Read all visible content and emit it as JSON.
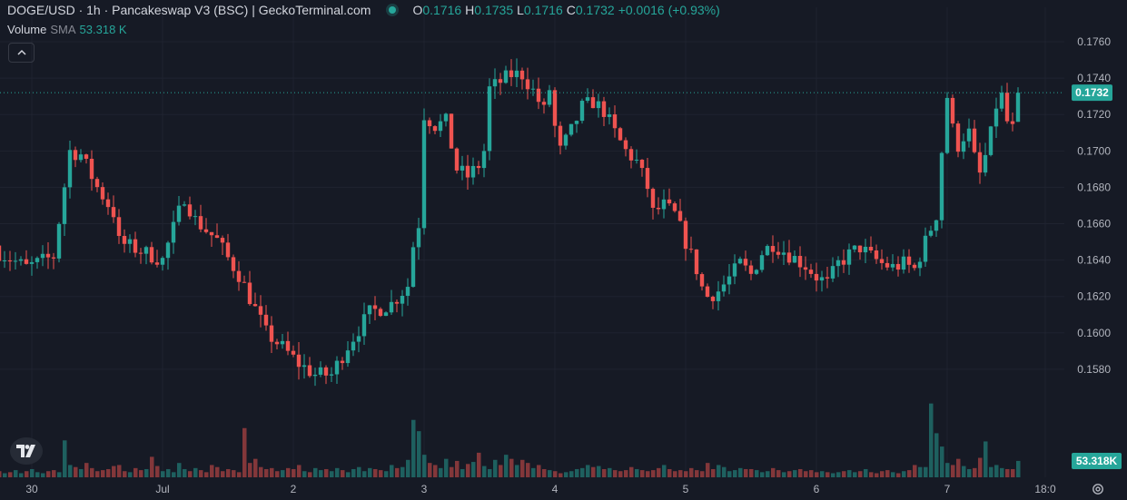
{
  "header": {
    "title": "DOGE/USD · 1h · Pancakeswap V3 (BSC) | GeckoTerminal.com",
    "ohlc": {
      "o_label": "O",
      "o": "0.1716",
      "h_label": "H",
      "h": "0.1735",
      "l_label": "L",
      "l": "0.1716",
      "c_label": "C",
      "c": "0.1732",
      "change": "+0.0016 (+0.93%)"
    }
  },
  "volume_legend": {
    "label": "Volume",
    "sma": "SMA",
    "value": "53.318 K"
  },
  "icons": {
    "collapse": "chevron-up-icon",
    "logo": "tradingview-logo-icon",
    "settings": "gear-icon"
  },
  "colors": {
    "up": "#26a69a",
    "down": "#ef5350",
    "background": "#161a25",
    "grid": "#1f2330",
    "text": "#b2b5be"
  },
  "chart_data": {
    "type": "candlestick",
    "interval": "1h",
    "y_axis": {
      "ticks": [
        "0.1760",
        "0.1740",
        "0.1720",
        "0.1700",
        "0.1680",
        "0.1660",
        "0.1640",
        "0.1620",
        "0.1600",
        "0.1580"
      ],
      "min": 0.1555,
      "max": 0.1769
    },
    "x_axis": {
      "ticks": [
        {
          "label": "30",
          "hour": 6
        },
        {
          "label": "Jul",
          "hour": 30
        },
        {
          "label": "2",
          "hour": 54
        },
        {
          "label": "3",
          "hour": 78
        },
        {
          "label": "4",
          "hour": 102
        },
        {
          "label": "5",
          "hour": 126
        },
        {
          "label": "6",
          "hour": 150
        },
        {
          "label": "7",
          "hour": 174
        },
        {
          "label": "18:0",
          "hour": 192
        }
      ]
    },
    "last_price": {
      "value": 0.1732,
      "label": "0.1732"
    },
    "volume_label": "53.318K",
    "vol_max": 100,
    "close_path": [
      [
        0,
        0.1644
      ],
      [
        5,
        0.1636
      ],
      [
        10,
        0.1642
      ],
      [
        13,
        0.17
      ],
      [
        15,
        0.1698
      ],
      [
        18,
        0.168
      ],
      [
        21,
        0.1666
      ],
      [
        22,
        0.165
      ],
      [
        26,
        0.1645
      ],
      [
        30,
        0.164
      ],
      [
        34,
        0.1675
      ],
      [
        36,
        0.1662
      ],
      [
        40,
        0.1651
      ],
      [
        42,
        0.1641
      ],
      [
        44,
        0.1632
      ],
      [
        47,
        0.1613
      ],
      [
        49,
        0.16
      ],
      [
        52,
        0.1592
      ],
      [
        55,
        0.1583
      ],
      [
        58,
        0.1577
      ],
      [
        61,
        0.1577
      ],
      [
        64,
        0.1593
      ],
      [
        68,
        0.1611
      ],
      [
        72,
        0.1616
      ],
      [
        75,
        0.1626
      ],
      [
        76,
        0.1648
      ],
      [
        77,
        0.166
      ],
      [
        78,
        0.172
      ],
      [
        80,
        0.1714
      ],
      [
        82,
        0.1716
      ],
      [
        84,
        0.169
      ],
      [
        86,
        0.1686
      ],
      [
        88,
        0.1692
      ],
      [
        89,
        0.17
      ],
      [
        90,
        0.1734
      ],
      [
        94,
        0.1742
      ],
      [
        96,
        0.1742
      ],
      [
        98,
        0.1733
      ],
      [
        100,
        0.1722
      ],
      [
        101,
        0.1734
      ],
      [
        102,
        0.1713
      ],
      [
        103,
        0.17
      ],
      [
        105,
        0.1711
      ],
      [
        107,
        0.1724
      ],
      [
        109,
        0.1727
      ],
      [
        111,
        0.1722
      ],
      [
        113,
        0.171
      ],
      [
        115,
        0.17
      ],
      [
        117,
        0.1694
      ],
      [
        119,
        0.168
      ],
      [
        120,
        0.1666
      ],
      [
        122,
        0.167
      ],
      [
        124,
        0.1665
      ],
      [
        126,
        0.165
      ],
      [
        128,
        0.1635
      ],
      [
        129,
        0.1625
      ],
      [
        130,
        0.162
      ],
      [
        132,
        0.1623
      ],
      [
        134,
        0.163
      ],
      [
        136,
        0.1638
      ],
      [
        138,
        0.1632
      ],
      [
        140,
        0.1644
      ],
      [
        142,
        0.1649
      ],
      [
        144,
        0.1645
      ],
      [
        146,
        0.1641
      ],
      [
        148,
        0.1637
      ],
      [
        150,
        0.1631
      ],
      [
        152,
        0.1627
      ],
      [
        154,
        0.1638
      ],
      [
        156,
        0.1643
      ],
      [
        158,
        0.1647
      ],
      [
        160,
        0.1642
      ],
      [
        162,
        0.1638
      ],
      [
        164,
        0.1636
      ],
      [
        166,
        0.1638
      ],
      [
        168,
        0.1635
      ],
      [
        170,
        0.165
      ],
      [
        172,
        0.1665
      ],
      [
        173,
        0.17
      ],
      [
        174,
        0.173
      ],
      [
        175,
        0.1712
      ],
      [
        176,
        0.1703
      ],
      [
        177,
        0.1708
      ],
      [
        178,
        0.171
      ],
      [
        179,
        0.1696
      ],
      [
        180,
        0.1687
      ],
      [
        181,
        0.1697
      ],
      [
        182,
        0.1709
      ],
      [
        183,
        0.1725
      ],
      [
        184,
        0.173
      ],
      [
        185,
        0.1716
      ],
      [
        186,
        0.1712
      ],
      [
        187,
        0.1732
      ]
    ],
    "volumes": [
      6,
      4,
      5,
      7,
      4,
      6,
      8,
      5,
      4,
      6,
      7,
      5,
      36,
      12,
      10,
      8,
      14,
      9,
      6,
      7,
      8,
      11,
      12,
      6,
      5,
      9,
      7,
      8,
      20,
      11,
      6,
      8,
      5,
      14,
      8,
      6,
      9,
      7,
      5,
      12,
      10,
      6,
      8,
      7,
      5,
      48,
      14,
      18,
      10,
      8,
      9,
      6,
      7,
      9,
      8,
      12,
      6,
      5,
      9,
      7,
      8,
      6,
      9,
      7,
      5,
      8,
      10,
      6,
      9,
      8,
      7,
      6,
      12,
      9,
      10,
      17,
      56,
      45,
      22,
      14,
      12,
      9,
      18,
      10,
      16,
      8,
      13,
      15,
      24,
      11,
      8,
      17,
      12,
      22,
      18,
      12,
      17,
      14,
      9,
      12,
      8,
      7,
      6,
      4,
      5,
      6,
      8,
      9,
      12,
      10,
      11,
      8,
      9,
      7,
      6,
      7,
      10,
      8,
      7,
      6,
      7,
      9,
      12,
      8,
      6,
      7,
      6,
      9,
      7,
      6,
      14,
      8,
      12,
      10,
      6,
      7,
      9,
      8,
      8,
      7,
      5,
      6,
      9,
      7,
      5,
      6,
      7,
      8,
      6,
      7,
      5,
      6,
      5,
      4,
      5,
      6,
      7,
      5,
      6,
      8,
      5,
      4,
      6,
      7,
      5,
      4,
      6,
      7,
      12,
      10,
      10,
      72,
      43,
      30,
      14,
      12,
      18,
      11,
      8,
      9,
      19,
      35,
      10,
      12,
      9,
      8,
      8,
      16
    ]
  }
}
